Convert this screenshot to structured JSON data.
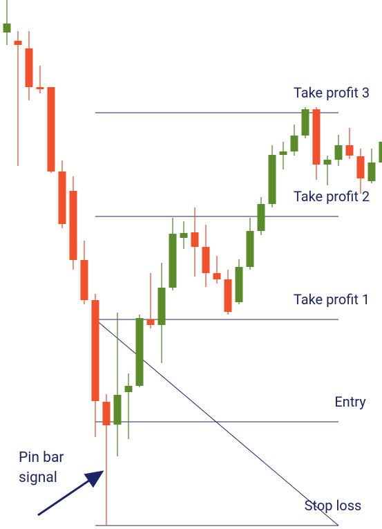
{
  "chart_data": {
    "type": "candlestick",
    "ylim": [
      0,
      765
    ],
    "up_color": "#5b8c2a",
    "down_color": "#f2502a",
    "open": [
      718,
      706,
      695,
      639,
      639,
      517,
      489,
      389,
      331,
      184,
      151,
      198,
      207,
      303,
      295,
      349,
      421,
      429,
      408,
      370,
      361,
      328,
      379,
      431,
      470,
      541,
      546,
      569,
      607,
      527,
      534,
      555,
      539,
      503,
      530
    ],
    "high": [
      765,
      720,
      720,
      670,
      639,
      533,
      510,
      417,
      340,
      195,
      313,
      225,
      310,
      370,
      385,
      450,
      445,
      465,
      440,
      395,
      375,
      390,
      450,
      480,
      555,
      560,
      585,
      610,
      610,
      540,
      570,
      580,
      550,
      550,
      580
    ],
    "low": [
      700,
      525,
      620,
      630,
      515,
      435,
      375,
      325,
      133,
      5,
      105,
      130,
      205,
      290,
      240,
      345,
      405,
      365,
      350,
      355,
      310,
      325,
      375,
      425,
      465,
      520,
      540,
      565,
      505,
      497,
      525,
      535,
      485,
      500,
      525
    ],
    "close": [
      731,
      700,
      639,
      636,
      517,
      441,
      389,
      331,
      185,
      150,
      194,
      207,
      305,
      295,
      349,
      427,
      428,
      408,
      370,
      361,
      314,
      379,
      431,
      470,
      541,
      546,
      569,
      607,
      527,
      534,
      555,
      540,
      507,
      530,
      560
    ],
    "levels": [
      {
        "label": "Take profit 3",
        "value": 602
      },
      {
        "label": "Take profit 2",
        "value": 452
      },
      {
        "label": "Take profit 1",
        "value": 303
      },
      {
        "label": "Entry",
        "value": 155
      },
      {
        "label": "Stop loss",
        "value": 5
      }
    ],
    "annotation": "Pin bar signal"
  }
}
